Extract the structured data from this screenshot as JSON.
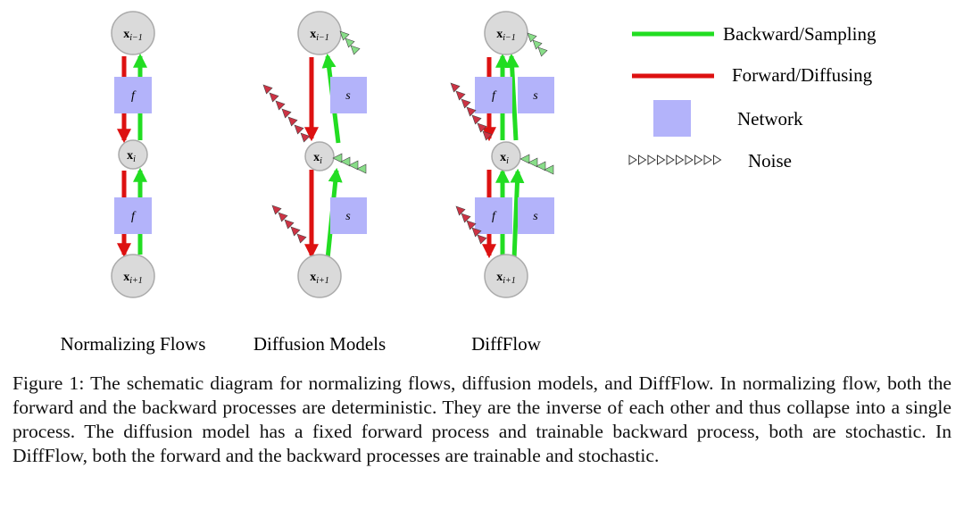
{
  "panels": [
    {
      "id": "nf",
      "label": "Normalizing Flows"
    },
    {
      "id": "dm",
      "label": "Diffusion Models"
    },
    {
      "id": "df",
      "label": "DiffFlow"
    }
  ],
  "nodes": {
    "top": {
      "main": "x",
      "sub": "i−1"
    },
    "mid": {
      "main": "x",
      "sub": "i"
    },
    "bottom": {
      "main": "x",
      "sub": "i+1"
    }
  },
  "networks": {
    "flow": "f",
    "score": "s"
  },
  "legend": {
    "backward": "Backward/Sampling",
    "forward": "Forward/Diffusing",
    "network": "Network",
    "noise": "Noise"
  },
  "caption": "Figure 1: The schematic diagram for normalizing flows, diffusion models, and DiffFlow. In normalizing flow, both the forward and the backward processes are deterministic. They are the inverse of each other and thus collapse into a single process. The diffusion model has a fixed forward process and trainable backward process, both are stochastic. In DiffFlow, both the forward and the backward processes are trainable and stochastic.",
  "colors": {
    "backward": "#22dd22",
    "forward": "#dd1111",
    "network": "#b3b3fa",
    "node_fill": "#dadada",
    "node_stroke": "#aaaaaa",
    "noise_fill": "#cc3344",
    "noise_fill_green": "#88dd88"
  }
}
